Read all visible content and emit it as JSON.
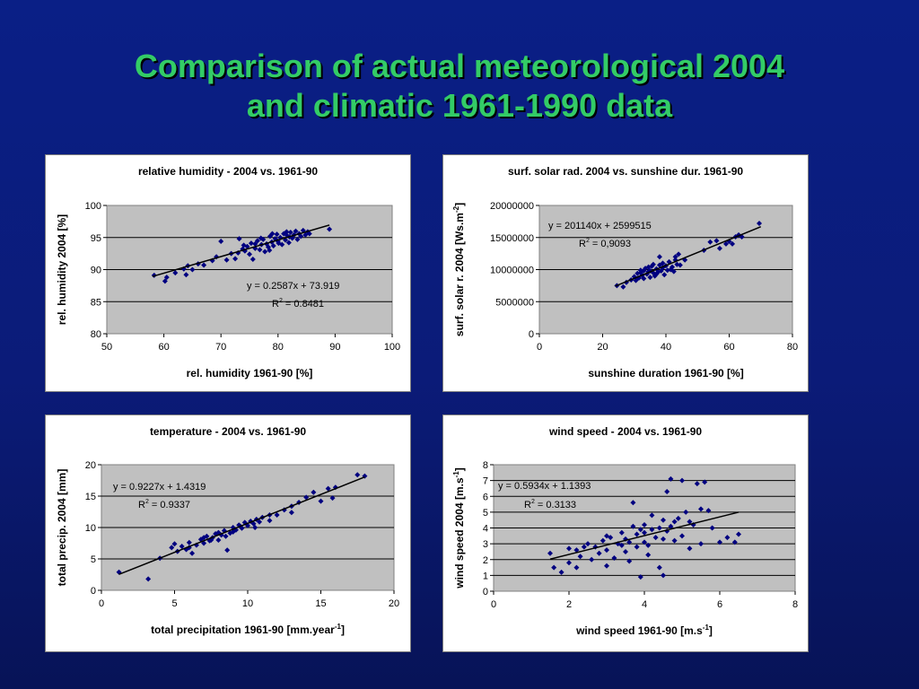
{
  "slide": {
    "title_line1": "Comparison of actual meteorological 2004",
    "title_line2": "and climatic 1961-1990 data"
  },
  "chart_data": [
    {
      "type": "scatter",
      "title": "relative humidity - 2004 vs. 1961-90",
      "xlabel": "rel. humidity 1961-90  [%]",
      "ylabel": "rel. humidity 2004  [%]",
      "xlim": [
        50,
        100
      ],
      "ylim": [
        80,
        100
      ],
      "xticks": [
        50,
        60,
        70,
        80,
        90,
        100
      ],
      "yticks": [
        80,
        85,
        90,
        95,
        100
      ],
      "grid": "horizontal",
      "equation": "y = 0.2587x + 73.919",
      "r2_label": "R",
      "r2_value": " = 0.8481",
      "trend": {
        "slope": 0.2587,
        "intercept": 73.919,
        "x_range": [
          58,
          89
        ]
      },
      "points": [
        [
          58.3,
          89.1
        ],
        [
          60.2,
          88.2
        ],
        [
          60.5,
          88.8
        ],
        [
          62.0,
          89.5
        ],
        [
          63.5,
          90.1
        ],
        [
          63.9,
          89.2
        ],
        [
          64.2,
          90.6
        ],
        [
          65.0,
          90.0
        ],
        [
          66.0,
          90.9
        ],
        [
          67.0,
          90.7
        ],
        [
          68.5,
          91.4
        ],
        [
          69.2,
          92.0
        ],
        [
          70.0,
          94.4
        ],
        [
          71.0,
          91.5
        ],
        [
          71.8,
          92.5
        ],
        [
          72.5,
          91.7
        ],
        [
          73.0,
          92.6
        ],
        [
          73.2,
          94.8
        ],
        [
          73.8,
          93.2
        ],
        [
          74.2,
          92.9
        ],
        [
          74.6,
          93.6
        ],
        [
          75.0,
          92.4
        ],
        [
          75.3,
          94.1
        ],
        [
          75.6,
          91.6
        ],
        [
          76.0,
          93.3
        ],
        [
          76.4,
          94.5
        ],
        [
          76.8,
          93.1
        ],
        [
          77.1,
          93.9
        ],
        [
          77.4,
          94.7
        ],
        [
          77.7,
          92.8
        ],
        [
          78.0,
          94.0
        ],
        [
          78.3,
          93.5
        ],
        [
          78.6,
          95.2
        ],
        [
          78.9,
          94.3
        ],
        [
          79.2,
          93.7
        ],
        [
          79.5,
          94.8
        ],
        [
          79.8,
          95.5
        ],
        [
          80.1,
          94.1
        ],
        [
          80.4,
          95.0
        ],
        [
          80.7,
          93.9
        ],
        [
          81.0,
          95.6
        ],
        [
          81.3,
          94.6
        ],
        [
          81.6,
          95.3
        ],
        [
          81.9,
          94.2
        ],
        [
          82.2,
          95.8
        ],
        [
          82.5,
          94.9
        ],
        [
          82.8,
          95.4
        ],
        [
          83.1,
          96.0
        ],
        [
          83.4,
          94.7
        ],
        [
          83.7,
          95.6
        ],
        [
          84.0,
          95.2
        ],
        [
          84.4,
          96.1
        ],
        [
          84.8,
          95.4
        ],
        [
          85.2,
          95.9
        ],
        [
          85.5,
          95.6
        ],
        [
          89.0,
          96.3
        ],
        [
          77.0,
          94.9
        ],
        [
          79.0,
          95.6
        ],
        [
          80.0,
          94.4
        ],
        [
          82.0,
          95.1
        ],
        [
          76.0,
          94.0
        ],
        [
          78.5,
          93.0
        ],
        [
          74.0,
          93.8
        ],
        [
          81.5,
          95.9
        ]
      ]
    },
    {
      "type": "scatter",
      "title": "surf. solar rad. 2004 vs. sunshine dur. 1961-90",
      "xlabel": "sunshine duration 1961-90  [%]",
      "ylabel": "surf. solar r. 2004 [Ws.m-2]",
      "ylabel_main": "surf. solar r. 2004 [Ws.m",
      "ylabel_sup": "-2",
      "ylabel_end": "]",
      "xlim": [
        0,
        80
      ],
      "ylim": [
        0,
        20000000
      ],
      "xticks": [
        0,
        20,
        40,
        60,
        80
      ],
      "yticks": [
        0,
        5000000,
        10000000,
        15000000,
        20000000
      ],
      "grid": "horizontal",
      "equation": "y = 201140x + 2599515",
      "r2_label": "R",
      "r2_value": " = 0,9093",
      "trend": {
        "slope": 201140,
        "intercept": 2599515,
        "x_range": [
          24,
          70
        ]
      },
      "points": [
        [
          24.5,
          7500000
        ],
        [
          26.5,
          7300000
        ],
        [
          27.5,
          8000000
        ],
        [
          29.0,
          8400000
        ],
        [
          30.0,
          8900000
        ],
        [
          30.5,
          8300000
        ],
        [
          31.0,
          9400000
        ],
        [
          31.5,
          8700000
        ],
        [
          32.0,
          9900000
        ],
        [
          32.5,
          9100000
        ],
        [
          33.0,
          8600000
        ],
        [
          33.5,
          10200000
        ],
        [
          34.0,
          9300000
        ],
        [
          34.5,
          9700000
        ],
        [
          35.0,
          8800000
        ],
        [
          35.5,
          10500000
        ],
        [
          36.0,
          9500000
        ],
        [
          36.5,
          9000000
        ],
        [
          37.0,
          10100000
        ],
        [
          37.5,
          9600000
        ],
        [
          38.0,
          12000000
        ],
        [
          38.5,
          9800000
        ],
        [
          39.0,
          10300000
        ],
        [
          39.5,
          9200000
        ],
        [
          40.0,
          10600000
        ],
        [
          40.5,
          9900000
        ],
        [
          41.0,
          11200000
        ],
        [
          41.5,
          10000000
        ],
        [
          42.0,
          10400000
        ],
        [
          42.5,
          9700000
        ],
        [
          43.0,
          11500000
        ],
        [
          43.5,
          10800000
        ],
        [
          44.0,
          12400000
        ],
        [
          44.5,
          10700000
        ],
        [
          33.0,
          9800000
        ],
        [
          34.5,
          10400000
        ],
        [
          36.0,
          10800000
        ],
        [
          38.0,
          10700000
        ],
        [
          39.0,
          11000000
        ],
        [
          43.0,
          12000000
        ],
        [
          46.0,
          11500000
        ],
        [
          52.0,
          13000000
        ],
        [
          54.0,
          14300000
        ],
        [
          56.0,
          14500000
        ],
        [
          57.0,
          13300000
        ],
        [
          59.0,
          14000000
        ],
        [
          60.0,
          14400000
        ],
        [
          61.0,
          14000000
        ],
        [
          62.0,
          15100000
        ],
        [
          63.0,
          15400000
        ],
        [
          64.0,
          15100000
        ],
        [
          69.5,
          17200000
        ],
        [
          31.0,
          8600000
        ],
        [
          32.0,
          9500000
        ],
        [
          35.0,
          9800000
        ],
        [
          37.0,
          9300000
        ]
      ]
    },
    {
      "type": "scatter",
      "title": "temperature - 2004 vs. 1961-90",
      "xlabel": "total precipitation 1961-90  [mm.year-1]",
      "xlabel_main": "total precipitation 1961-90  [mm.year",
      "xlabel_sup": "-1",
      "xlabel_end": "]",
      "ylabel": "total precip. 2004  [mm]",
      "xlim": [
        0,
        20
      ],
      "ylim": [
        0,
        20
      ],
      "xticks": [
        0,
        5,
        10,
        15,
        20
      ],
      "yticks": [
        0,
        5,
        10,
        15,
        20
      ],
      "grid": "horizontal",
      "equation": "y = 0.9227x + 1.4319",
      "r2_label": "R",
      "r2_value": " = 0.9337",
      "trend": {
        "slope": 0.9227,
        "intercept": 1.4319,
        "x_range": [
          1.2,
          18
        ]
      },
      "points": [
        [
          1.2,
          2.9
        ],
        [
          3.2,
          1.8
        ],
        [
          4.0,
          5.1
        ],
        [
          4.8,
          6.8
        ],
        [
          5.0,
          7.4
        ],
        [
          5.2,
          6.2
        ],
        [
          5.5,
          7.0
        ],
        [
          5.8,
          6.5
        ],
        [
          6.0,
          7.6
        ],
        [
          6.2,
          5.9
        ],
        [
          6.5,
          7.2
        ],
        [
          6.8,
          8.1
        ],
        [
          7.0,
          7.5
        ],
        [
          7.2,
          8.6
        ],
        [
          7.4,
          7.9
        ],
        [
          7.6,
          8.4
        ],
        [
          7.8,
          9.0
        ],
        [
          8.0,
          8.0
        ],
        [
          8.2,
          8.8
        ],
        [
          8.4,
          9.5
        ],
        [
          8.6,
          6.4
        ],
        [
          8.8,
          9.1
        ],
        [
          9.0,
          10.0
        ],
        [
          9.2,
          9.6
        ],
        [
          9.4,
          10.4
        ],
        [
          9.6,
          9.9
        ],
        [
          9.8,
          10.8
        ],
        [
          10.0,
          10.3
        ],
        [
          10.2,
          11.0
        ],
        [
          10.4,
          10.6
        ],
        [
          10.6,
          11.3
        ],
        [
          10.8,
          10.9
        ],
        [
          11.0,
          11.6
        ],
        [
          11.5,
          11.1
        ],
        [
          12.0,
          12.0
        ],
        [
          12.5,
          12.8
        ],
        [
          13.0,
          13.4
        ],
        [
          13.5,
          14.0
        ],
        [
          14.0,
          14.8
        ],
        [
          14.5,
          15.6
        ],
        [
          15.0,
          14.2
        ],
        [
          15.5,
          16.2
        ],
        [
          15.8,
          14.7
        ],
        [
          16.0,
          16.4
        ],
        [
          17.5,
          18.4
        ],
        [
          18.0,
          18.2
        ],
        [
          7.0,
          8.4
        ],
        [
          8.0,
          9.2
        ],
        [
          9.0,
          9.3
        ],
        [
          9.5,
          10.2
        ],
        [
          6.0,
          6.8
        ],
        [
          7.5,
          8.0
        ],
        [
          8.5,
          8.6
        ],
        [
          10.5,
          10.0
        ],
        [
          11.5,
          12.0
        ],
        [
          13.0,
          12.4
        ]
      ]
    },
    {
      "type": "scatter",
      "title": "wind speed - 2004 vs. 1961-90",
      "xlabel": "wind speed 1961-90  [m.s-1]",
      "xlabel_main": "wind speed 1961-90  [m.s",
      "xlabel_sup": "-1",
      "xlabel_end": "]",
      "ylabel": "wind speed 2004  [m.s-1]",
      "ylabel_main": "wind speed 2004  [m.s",
      "ylabel_sup": "-1",
      "ylabel_end": "]",
      "xlim": [
        0,
        8
      ],
      "ylim": [
        0,
        8
      ],
      "xticks": [
        0,
        2,
        4,
        6,
        8
      ],
      "yticks": [
        0,
        1,
        2,
        3,
        4,
        5,
        6,
        7,
        8
      ],
      "grid": "horizontal",
      "equation": "y = 0.5934x + 1.1393",
      "r2_label": "R",
      "r2_value": " = 0.3133",
      "trend": {
        "slope": 0.5934,
        "intercept": 1.1393,
        "x_range": [
          1.5,
          6.5
        ]
      },
      "points": [
        [
          1.5,
          2.4
        ],
        [
          1.6,
          1.5
        ],
        [
          1.8,
          1.2
        ],
        [
          2.0,
          1.8
        ],
        [
          2.0,
          2.7
        ],
        [
          2.2,
          1.5
        ],
        [
          2.3,
          2.2
        ],
        [
          2.5,
          3.0
        ],
        [
          2.6,
          2.0
        ],
        [
          2.7,
          2.8
        ],
        [
          2.8,
          2.4
        ],
        [
          2.9,
          3.2
        ],
        [
          3.0,
          1.6
        ],
        [
          3.0,
          2.6
        ],
        [
          3.1,
          3.4
        ],
        [
          3.2,
          2.1
        ],
        [
          3.3,
          3.0
        ],
        [
          3.4,
          3.7
        ],
        [
          3.5,
          2.5
        ],
        [
          3.5,
          3.3
        ],
        [
          3.6,
          1.9
        ],
        [
          3.7,
          5.6
        ],
        [
          3.8,
          2.8
        ],
        [
          3.8,
          3.6
        ],
        [
          3.9,
          0.9
        ],
        [
          4.0,
          3.1
        ],
        [
          4.0,
          4.2
        ],
        [
          4.1,
          2.3
        ],
        [
          4.2,
          3.9
        ],
        [
          4.2,
          4.8
        ],
        [
          4.3,
          3.4
        ],
        [
          4.4,
          1.5
        ],
        [
          4.5,
          4.5
        ],
        [
          4.5,
          1.0
        ],
        [
          4.6,
          3.8
        ],
        [
          4.6,
          6.3
        ],
        [
          4.7,
          4.1
        ],
        [
          4.7,
          7.1
        ],
        [
          4.8,
          3.2
        ],
        [
          4.9,
          4.6
        ],
        [
          5.0,
          7.0
        ],
        [
          5.0,
          3.5
        ],
        [
          5.1,
          5.0
        ],
        [
          5.2,
          2.7
        ],
        [
          5.3,
          4.2
        ],
        [
          5.4,
          6.8
        ],
        [
          5.5,
          3.0
        ],
        [
          5.5,
          5.2
        ],
        [
          5.6,
          6.9
        ],
        [
          5.8,
          4.0
        ],
        [
          6.0,
          3.1
        ],
        [
          6.2,
          3.4
        ],
        [
          6.4,
          3.1
        ],
        [
          6.5,
          3.6
        ],
        [
          3.0,
          3.5
        ],
        [
          3.6,
          3.1
        ],
        [
          4.0,
          3.7
        ],
        [
          4.4,
          4.0
        ],
        [
          4.8,
          4.4
        ],
        [
          3.4,
          2.9
        ],
        [
          2.4,
          2.8
        ],
        [
          5.7,
          5.1
        ],
        [
          4.1,
          2.9
        ],
        [
          5.2,
          4.4
        ],
        [
          3.7,
          4.1
        ],
        [
          2.2,
          2.6
        ],
        [
          3.9,
          3.9
        ],
        [
          4.5,
          3.3
        ]
      ]
    }
  ]
}
